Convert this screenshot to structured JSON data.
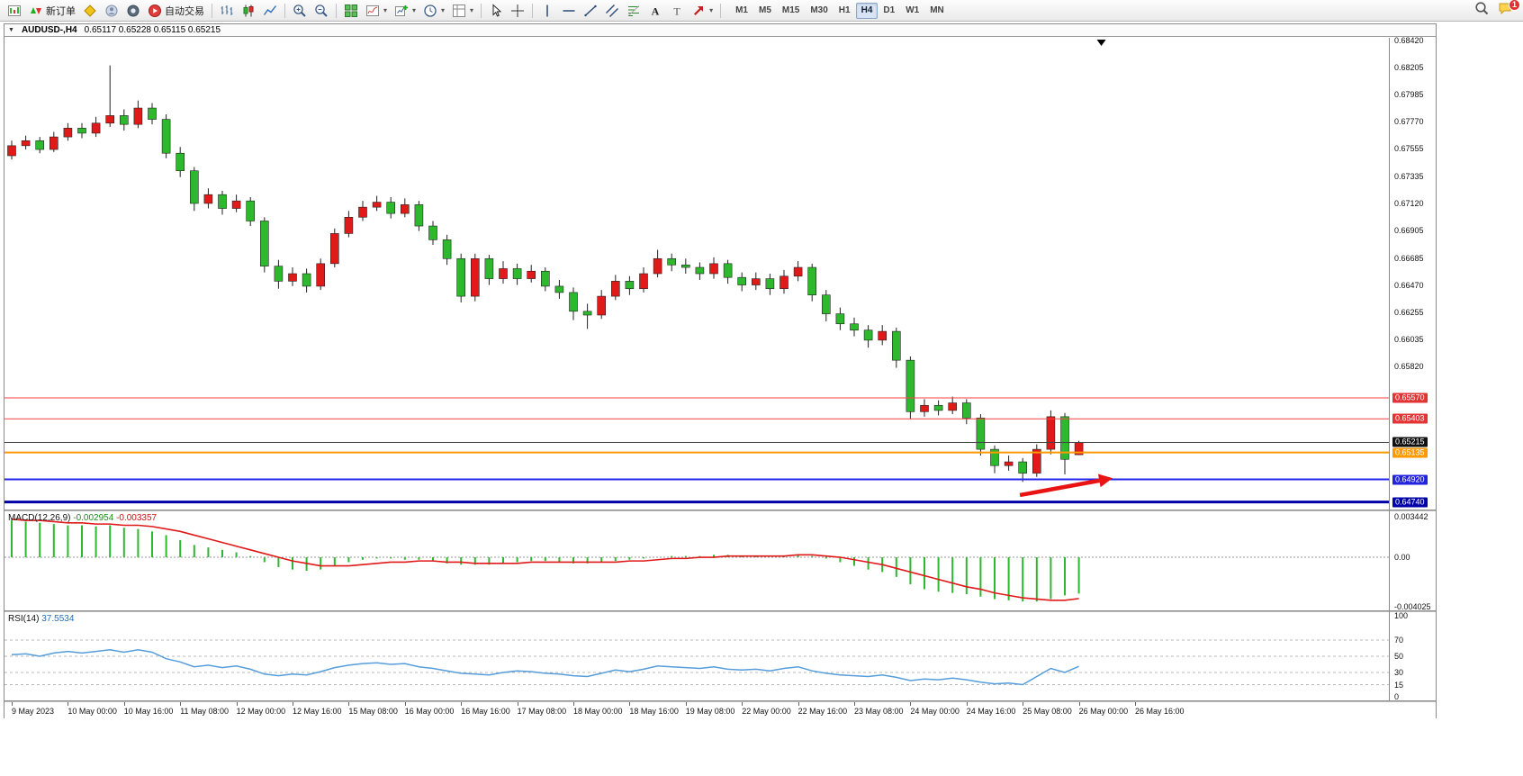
{
  "ui": {
    "menu_icon": "▼"
  },
  "toolbar": {
    "dropdown_glyph": "▾",
    "badge_color": "#e03030",
    "items": [
      {
        "icon": "chart-window-icon"
      },
      {
        "icon": "new-order-icon",
        "label": "新订单"
      },
      {
        "icon": "mql-editor-icon"
      },
      {
        "icon": "profile-icon"
      },
      {
        "icon": "community-icon"
      },
      {
        "icon": "auto-trading-icon",
        "label": "自动交易"
      },
      {
        "sep": true
      },
      {
        "icon": "bar-chart-icon"
      },
      {
        "icon": "candlestick-icon"
      },
      {
        "icon": "line-chart-icon"
      },
      {
        "sep": true
      },
      {
        "icon": "zoom-in-icon"
      },
      {
        "icon": "zoom-out-icon"
      },
      {
        "sep": true
      },
      {
        "icon": "tile-windows-icon"
      },
      {
        "icon": "indicators-icon",
        "dropdown": true
      },
      {
        "icon": "new-chart-icon",
        "dropdown": true
      },
      {
        "icon": "period-icon",
        "dropdown": true
      },
      {
        "icon": "template-icon",
        "dropdown": true
      },
      {
        "sep": true
      },
      {
        "icon": "cursor-icon"
      },
      {
        "icon": "crosshair-icon"
      },
      {
        "sep": true
      },
      {
        "icon": "vertical-line-icon"
      },
      {
        "icon": "horizontal-line-icon"
      },
      {
        "icon": "trendline-icon"
      },
      {
        "icon": "channel-icon"
      },
      {
        "icon": "fibonacci-icon"
      },
      {
        "icon": "text-icon"
      },
      {
        "icon": "label-icon"
      },
      {
        "icon": "arrows-icon",
        "dropdown": true
      },
      {
        "sep": true
      }
    ],
    "timeframes": [
      "M1",
      "M5",
      "M15",
      "M30",
      "H1",
      "H4",
      "D1",
      "W1",
      "MN"
    ],
    "active_timeframe": "H4",
    "right_items": [
      {
        "icon": "search-icon"
      },
      {
        "icon": "notifications-icon",
        "badge": "1"
      }
    ]
  },
  "chart_data": [
    {
      "type": "candlestick",
      "title": "AUDUSD-,H4",
      "quote": "0.65117 0.65228 0.65115 0.65215",
      "up_color": "#e01919",
      "down_color": "#2eb82e",
      "wick_color": "#222222",
      "ylim": [
        0.6468,
        0.6844
      ],
      "y_ticks": [
        "0.68420",
        "0.68205",
        "0.67985",
        "0.67770",
        "0.67555",
        "0.67335",
        "0.67120",
        "0.66905",
        "0.66685",
        "0.66470",
        "0.66255",
        "0.66035",
        "0.65820"
      ],
      "x_labels": [
        "9 May 2023",
        "10 May 00:00",
        "10 May 16:00",
        "11 May 08:00",
        "12 May 00:00",
        "12 May 16:00",
        "15 May 08:00",
        "16 May 00:00",
        "16 May 16:00",
        "17 May 08:00",
        "18 May 00:00",
        "18 May 16:00",
        "19 May 08:00",
        "22 May 00:00",
        "22 May 16:00",
        "23 May 08:00",
        "24 May 00:00",
        "24 May 16:00",
        "25 May 08:00",
        "26 May 00:00",
        "26 May 16:00"
      ],
      "hlines": [
        {
          "price": 0.6557,
          "label": "0.65570",
          "color": "#ff4040",
          "label_bg": "#e33333",
          "width": 1
        },
        {
          "price": 0.65403,
          "label": "0.65403",
          "color": "#ff4040",
          "label_bg": "#e33333",
          "width": 1
        },
        {
          "price": 0.65215,
          "label": "0.65215",
          "color": "#444444",
          "label_bg": "#111111",
          "width": 1
        },
        {
          "price": 0.65135,
          "label": "0.65135",
          "color": "#ff9900",
          "label_bg": "#ff9900",
          "width": 2
        },
        {
          "price": 0.6492,
          "label": "0.64920",
          "color": "#2525f0",
          "label_bg": "#2222dd",
          "width": 2
        },
        {
          "price": 0.6474,
          "label": "0.64740",
          "color": "#0000a8",
          "label_bg": "#0000a8",
          "width": 3
        }
      ],
      "annotations": [
        {
          "type": "arrow-right",
          "color": "#e81313",
          "from_bar": 71.8,
          "from_price": 0.64795,
          "to_bar": 78.4,
          "to_price": 0.6493
        }
      ],
      "shift_marker_bar": 77.6,
      "ohlc": [
        [
          0.675,
          0.6762,
          0.6747,
          0.6758
        ],
        [
          0.6758,
          0.6766,
          0.6755,
          0.6762
        ],
        [
          0.6762,
          0.6765,
          0.6752,
          0.6755
        ],
        [
          0.6755,
          0.6769,
          0.6753,
          0.6765
        ],
        [
          0.6765,
          0.6776,
          0.6762,
          0.6772
        ],
        [
          0.6772,
          0.6776,
          0.6764,
          0.6768
        ],
        [
          0.6768,
          0.6781,
          0.6765,
          0.6776
        ],
        [
          0.6776,
          0.6822,
          0.6773,
          0.6782
        ],
        [
          0.6782,
          0.6787,
          0.677,
          0.6775
        ],
        [
          0.6775,
          0.6794,
          0.6772,
          0.6788
        ],
        [
          0.6788,
          0.6792,
          0.6775,
          0.6779
        ],
        [
          0.6779,
          0.6783,
          0.6748,
          0.6752
        ],
        [
          0.6752,
          0.6757,
          0.6733,
          0.6738
        ],
        [
          0.6738,
          0.6741,
          0.6706,
          0.6712
        ],
        [
          0.6712,
          0.6724,
          0.6708,
          0.6719
        ],
        [
          0.6719,
          0.6722,
          0.6703,
          0.6708
        ],
        [
          0.6708,
          0.6719,
          0.6705,
          0.6714
        ],
        [
          0.6714,
          0.6717,
          0.6694,
          0.6698
        ],
        [
          0.6698,
          0.6701,
          0.6657,
          0.6662
        ],
        [
          0.6662,
          0.6667,
          0.6644,
          0.665
        ],
        [
          0.665,
          0.6661,
          0.6646,
          0.6656
        ],
        [
          0.6656,
          0.666,
          0.6641,
          0.6646
        ],
        [
          0.6646,
          0.6668,
          0.6643,
          0.6664
        ],
        [
          0.6664,
          0.6692,
          0.6661,
          0.6688
        ],
        [
          0.6688,
          0.6706,
          0.6685,
          0.6701
        ],
        [
          0.6701,
          0.6714,
          0.6698,
          0.6709
        ],
        [
          0.6709,
          0.6718,
          0.6706,
          0.6713
        ],
        [
          0.6713,
          0.6717,
          0.67,
          0.6704
        ],
        [
          0.6704,
          0.6716,
          0.6701,
          0.6711
        ],
        [
          0.6711,
          0.6714,
          0.669,
          0.6694
        ],
        [
          0.6694,
          0.6698,
          0.6679,
          0.6683
        ],
        [
          0.6683,
          0.6687,
          0.6663,
          0.6668
        ],
        [
          0.6668,
          0.6672,
          0.6633,
          0.6638
        ],
        [
          0.6638,
          0.6672,
          0.6634,
          0.6668
        ],
        [
          0.6668,
          0.6671,
          0.6647,
          0.6652
        ],
        [
          0.6652,
          0.6666,
          0.6648,
          0.666
        ],
        [
          0.666,
          0.6664,
          0.6647,
          0.6652
        ],
        [
          0.6652,
          0.6663,
          0.6649,
          0.6658
        ],
        [
          0.6658,
          0.6661,
          0.6642,
          0.6646
        ],
        [
          0.6646,
          0.6651,
          0.6636,
          0.6641
        ],
        [
          0.6641,
          0.6645,
          0.6619,
          0.6626
        ],
        [
          0.6626,
          0.6632,
          0.6612,
          0.6623
        ],
        [
          0.6623,
          0.6643,
          0.662,
          0.6638
        ],
        [
          0.6638,
          0.6655,
          0.6635,
          0.665
        ],
        [
          0.665,
          0.6654,
          0.6639,
          0.6644
        ],
        [
          0.6644,
          0.6661,
          0.6641,
          0.6656
        ],
        [
          0.6656,
          0.6675,
          0.6653,
          0.6668
        ],
        [
          0.6668,
          0.6672,
          0.6658,
          0.6663
        ],
        [
          0.6663,
          0.6668,
          0.6656,
          0.6661
        ],
        [
          0.6661,
          0.6665,
          0.6651,
          0.6656
        ],
        [
          0.6656,
          0.6669,
          0.6652,
          0.6664
        ],
        [
          0.6664,
          0.6667,
          0.6648,
          0.6653
        ],
        [
          0.6653,
          0.6657,
          0.6642,
          0.6647
        ],
        [
          0.6647,
          0.6657,
          0.6643,
          0.6652
        ],
        [
          0.6652,
          0.6656,
          0.6639,
          0.6644
        ],
        [
          0.6644,
          0.6659,
          0.664,
          0.6654
        ],
        [
          0.6654,
          0.6666,
          0.665,
          0.6661
        ],
        [
          0.6661,
          0.6664,
          0.6634,
          0.6639
        ],
        [
          0.6639,
          0.6643,
          0.6618,
          0.6624
        ],
        [
          0.6624,
          0.6629,
          0.6611,
          0.6616
        ],
        [
          0.6616,
          0.6621,
          0.6606,
          0.6611
        ],
        [
          0.6611,
          0.6615,
          0.6597,
          0.6603
        ],
        [
          0.6603,
          0.6615,
          0.6599,
          0.661
        ],
        [
          0.661,
          0.6613,
          0.6581,
          0.6587
        ],
        [
          0.6587,
          0.659,
          0.654,
          0.6546
        ],
        [
          0.6546,
          0.6556,
          0.6542,
          0.6551
        ],
        [
          0.6551,
          0.6555,
          0.6543,
          0.6547
        ],
        [
          0.6547,
          0.6558,
          0.6544,
          0.6553
        ],
        [
          0.6553,
          0.6556,
          0.6536,
          0.6541
        ],
        [
          0.6541,
          0.6544,
          0.6511,
          0.6516
        ],
        [
          0.6516,
          0.6519,
          0.6497,
          0.6503
        ],
        [
          0.6503,
          0.6511,
          0.6499,
          0.6506
        ],
        [
          0.6506,
          0.6509,
          0.649,
          0.6497
        ],
        [
          0.6497,
          0.652,
          0.6494,
          0.6516
        ],
        [
          0.6516,
          0.6547,
          0.6512,
          0.6542
        ],
        [
          0.6542,
          0.6545,
          0.6496,
          0.6508
        ],
        [
          0.65117,
          0.65228,
          0.65115,
          0.65215
        ]
      ]
    },
    {
      "type": "bar",
      "name": "MACD(12,26,9)",
      "value_main": "-0.002954",
      "value_signal": "-0.003357",
      "histogram_color": "#2eb82e",
      "signal_color": "#e01919",
      "ylim": [
        -0.004025,
        0.003442
      ],
      "axis_labels": [
        "0.003442",
        "0.00",
        "-0.004025"
      ],
      "values": [
        0.003,
        0.0029,
        0.0028,
        0.0027,
        0.0026,
        0.0026,
        0.0025,
        0.0026,
        0.0024,
        0.0023,
        0.0021,
        0.0018,
        0.0014,
        0.001,
        0.0008,
        0.0006,
        0.0004,
        0.0001,
        -0.0004,
        -0.0008,
        -0.001,
        -0.0011,
        -0.001,
        -0.0007,
        -0.0004,
        -0.0002,
        -0.0001,
        -0.0001,
        -0.0002,
        -0.0002,
        -0.0003,
        -0.0005,
        -0.0006,
        -0.0006,
        -0.0006,
        -0.0005,
        -0.0004,
        -0.0003,
        -0.0003,
        -0.0004,
        -0.0005,
        -0.0005,
        -0.0004,
        -0.0003,
        -0.0002,
        -0.0001,
        0.0,
        0.0001,
        0.0001,
        0.0001,
        0.0002,
        0.0002,
        0.0001,
        0.0001,
        0.0,
        0.0001,
        0.0002,
        0.0001,
        -0.0001,
        -0.0004,
        -0.0007,
        -0.001,
        -0.0012,
        -0.0016,
        -0.0022,
        -0.0026,
        -0.0028,
        -0.0029,
        -0.003,
        -0.0032,
        -0.0034,
        -0.0035,
        -0.0036,
        -0.0036,
        -0.0034,
        -0.0031,
        -0.002954
      ],
      "signal": [
        0.0031,
        0.003,
        0.003,
        0.0029,
        0.0028,
        0.0028,
        0.0027,
        0.0027,
        0.0026,
        0.0026,
        0.0025,
        0.0023,
        0.0021,
        0.0018,
        0.0015,
        0.0012,
        0.0009,
        0.0006,
        0.0003,
        0.0,
        -0.0003,
        -0.0005,
        -0.0007,
        -0.0007,
        -0.0007,
        -0.0006,
        -0.0005,
        -0.0004,
        -0.0004,
        -0.0003,
        -0.0003,
        -0.0004,
        -0.0004,
        -0.0005,
        -0.0005,
        -0.0005,
        -0.0005,
        -0.0004,
        -0.0004,
        -0.0004,
        -0.0004,
        -0.0004,
        -0.0004,
        -0.0004,
        -0.0003,
        -0.0003,
        -0.0002,
        -0.0001,
        -0.0001,
        0.0,
        0.0,
        0.0001,
        0.0001,
        0.0001,
        0.0001,
        0.0001,
        0.0002,
        0.0002,
        0.0001,
        0.0,
        -0.0002,
        -0.0004,
        -0.0006,
        -0.0009,
        -0.0012,
        -0.0015,
        -0.0018,
        -0.0021,
        -0.0024,
        -0.0026,
        -0.0029,
        -0.0031,
        -0.0033,
        -0.0034,
        -0.0035,
        -0.0035,
        -0.003357
      ]
    },
    {
      "type": "line",
      "name": "RSI(14)",
      "value": "37.5534",
      "color": "#559ddb",
      "ylim": [
        0,
        100
      ],
      "levels": [
        70,
        50,
        30,
        15
      ],
      "axis_labels": [
        "100",
        "70",
        "50",
        "30",
        "15",
        "0"
      ],
      "axis_values": [
        100,
        70,
        50,
        30,
        15,
        0
      ],
      "values": [
        52,
        53,
        50,
        54,
        56,
        54,
        56,
        58,
        55,
        58,
        55,
        47,
        43,
        37,
        39,
        36,
        38,
        34,
        28,
        26,
        28,
        27,
        31,
        36,
        39,
        41,
        42,
        40,
        41,
        37,
        35,
        32,
        29,
        28,
        27,
        30,
        32,
        31,
        29,
        28,
        26,
        25,
        29,
        33,
        31,
        34,
        38,
        37,
        36,
        35,
        37,
        34,
        33,
        34,
        32,
        35,
        37,
        32,
        29,
        27,
        26,
        25,
        27,
        24,
        20,
        22,
        21,
        23,
        21,
        18,
        16,
        17,
        15,
        25,
        35,
        30,
        37.5534
      ]
    }
  ]
}
